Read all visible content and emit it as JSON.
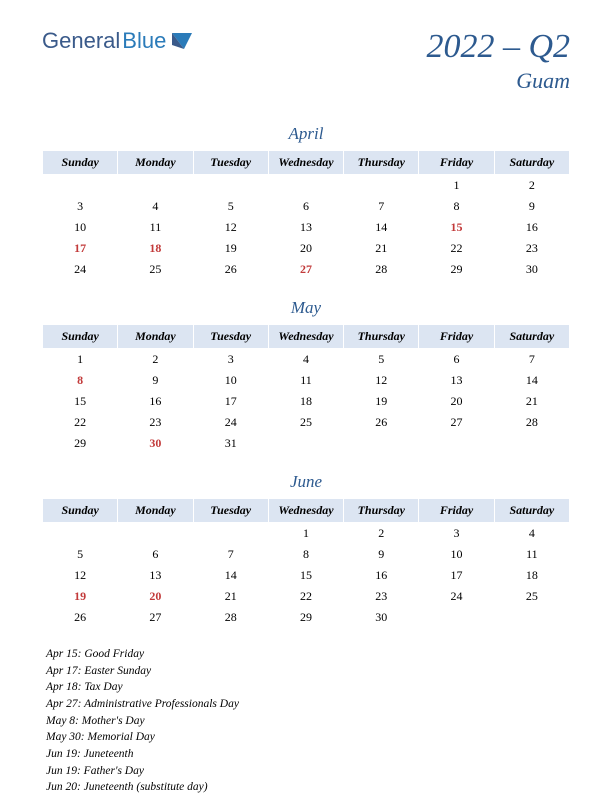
{
  "logo": {
    "general": "General",
    "blue": "Blue"
  },
  "title": {
    "main": "2022 – Q2",
    "sub": "Guam"
  },
  "dayHeaders": [
    "Sunday",
    "Monday",
    "Tuesday",
    "Wednesday",
    "Thursday",
    "Friday",
    "Saturday"
  ],
  "colors": {
    "accent": "#2d5a8f",
    "headerBg": "#dce5f2",
    "holiday": "#c23a3a",
    "background": "#ffffff"
  },
  "months": [
    {
      "name": "April",
      "weeks": [
        [
          "",
          "",
          "",
          "",
          "",
          {
            "d": "1"
          },
          {
            "d": "2"
          }
        ],
        [
          {
            "d": "3"
          },
          {
            "d": "4"
          },
          {
            "d": "5"
          },
          {
            "d": "6"
          },
          {
            "d": "7"
          },
          {
            "d": "8"
          },
          {
            "d": "9"
          }
        ],
        [
          {
            "d": "10"
          },
          {
            "d": "11"
          },
          {
            "d": "12"
          },
          {
            "d": "13"
          },
          {
            "d": "14"
          },
          {
            "d": "15",
            "hl": true
          },
          {
            "d": "16"
          }
        ],
        [
          {
            "d": "17",
            "hl": true
          },
          {
            "d": "18",
            "hl": true
          },
          {
            "d": "19"
          },
          {
            "d": "20"
          },
          {
            "d": "21"
          },
          {
            "d": "22"
          },
          {
            "d": "23"
          }
        ],
        [
          {
            "d": "24"
          },
          {
            "d": "25"
          },
          {
            "d": "26"
          },
          {
            "d": "27",
            "hl": true
          },
          {
            "d": "28"
          },
          {
            "d": "29"
          },
          {
            "d": "30"
          }
        ]
      ]
    },
    {
      "name": "May",
      "weeks": [
        [
          {
            "d": "1"
          },
          {
            "d": "2"
          },
          {
            "d": "3"
          },
          {
            "d": "4"
          },
          {
            "d": "5"
          },
          {
            "d": "6"
          },
          {
            "d": "7"
          }
        ],
        [
          {
            "d": "8",
            "hl": true
          },
          {
            "d": "9"
          },
          {
            "d": "10"
          },
          {
            "d": "11"
          },
          {
            "d": "12"
          },
          {
            "d": "13"
          },
          {
            "d": "14"
          }
        ],
        [
          {
            "d": "15"
          },
          {
            "d": "16"
          },
          {
            "d": "17"
          },
          {
            "d": "18"
          },
          {
            "d": "19"
          },
          {
            "d": "20"
          },
          {
            "d": "21"
          }
        ],
        [
          {
            "d": "22"
          },
          {
            "d": "23"
          },
          {
            "d": "24"
          },
          {
            "d": "25"
          },
          {
            "d": "26"
          },
          {
            "d": "27"
          },
          {
            "d": "28"
          }
        ],
        [
          {
            "d": "29"
          },
          {
            "d": "30",
            "hl": true
          },
          {
            "d": "31"
          },
          "",
          "",
          "",
          ""
        ]
      ]
    },
    {
      "name": "June",
      "weeks": [
        [
          "",
          "",
          "",
          {
            "d": "1"
          },
          {
            "d": "2"
          },
          {
            "d": "3"
          },
          {
            "d": "4"
          }
        ],
        [
          {
            "d": "5"
          },
          {
            "d": "6"
          },
          {
            "d": "7"
          },
          {
            "d": "8"
          },
          {
            "d": "9"
          },
          {
            "d": "10"
          },
          {
            "d": "11"
          }
        ],
        [
          {
            "d": "12"
          },
          {
            "d": "13"
          },
          {
            "d": "14"
          },
          {
            "d": "15"
          },
          {
            "d": "16"
          },
          {
            "d": "17"
          },
          {
            "d": "18"
          }
        ],
        [
          {
            "d": "19",
            "hl": true
          },
          {
            "d": "20",
            "hl": true
          },
          {
            "d": "21"
          },
          {
            "d": "22"
          },
          {
            "d": "23"
          },
          {
            "d": "24"
          },
          {
            "d": "25"
          }
        ],
        [
          {
            "d": "26"
          },
          {
            "d": "27"
          },
          {
            "d": "28"
          },
          {
            "d": "29"
          },
          {
            "d": "30"
          },
          "",
          ""
        ]
      ]
    }
  ],
  "holidays": [
    "Apr 15: Good Friday",
    "Apr 17: Easter Sunday",
    "Apr 18: Tax Day",
    "Apr 27: Administrative Professionals Day",
    "May 8: Mother's Day",
    "May 30: Memorial Day",
    "Jun 19: Juneteenth",
    "  Jun 19: Father's Day",
    "Jun 20: Juneteenth (substitute day)"
  ]
}
